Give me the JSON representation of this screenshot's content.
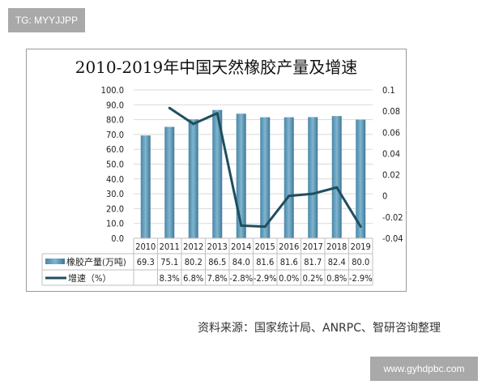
{
  "watermark_top": "TG: MYYJJPP",
  "watermark_bottom": "www.gyhdpbc.com",
  "source": "资料来源：国家统计局、ANRPC、智研咨询整理",
  "chart_data": {
    "type": "bar+line",
    "title": "2010-2019年中国天然橡胶产量及增速",
    "categories": [
      "2010",
      "2011",
      "2012",
      "2013",
      "2014",
      "2015",
      "2016",
      "2017",
      "2018",
      "2019"
    ],
    "series": [
      {
        "name": "橡胶产量(万吨)",
        "type": "bar",
        "axis": "left",
        "color": "#5b9bbd",
        "values": [
          69.3,
          75.1,
          80.2,
          86.5,
          84.0,
          81.6,
          81.6,
          81.7,
          82.4,
          80.0
        ],
        "labels": [
          "69.3",
          "75.1",
          "80.2",
          "86.5",
          "84.0",
          "81.6",
          "81.6",
          "81.7",
          "82.4",
          "80.0"
        ]
      },
      {
        "name": "增速（%）",
        "type": "line",
        "axis": "right",
        "color": "#1f4e5f",
        "values": [
          null,
          0.083,
          0.068,
          0.078,
          -0.028,
          -0.029,
          0.0,
          0.002,
          0.008,
          -0.029
        ],
        "labels": [
          "",
          "8.3%",
          "6.8%",
          "7.8%",
          "-2.8%",
          "-2.9%",
          "0.0%",
          "0.2%",
          "0.8%",
          "-2.9%"
        ]
      }
    ],
    "left_axis": {
      "ylim": [
        0,
        100
      ],
      "ticks": [
        "0.0",
        "10.0",
        "20.0",
        "30.0",
        "40.0",
        "50.0",
        "60.0",
        "70.0",
        "80.0",
        "90.0",
        "100.0"
      ]
    },
    "right_axis": {
      "ylim": [
        -0.04,
        0.1
      ],
      "ticks": [
        "-0.04",
        "-0.02",
        "0",
        "0.02",
        "0.04",
        "0.06",
        "0.08",
        "0.1"
      ]
    },
    "grid": true,
    "legend": "data-table"
  }
}
